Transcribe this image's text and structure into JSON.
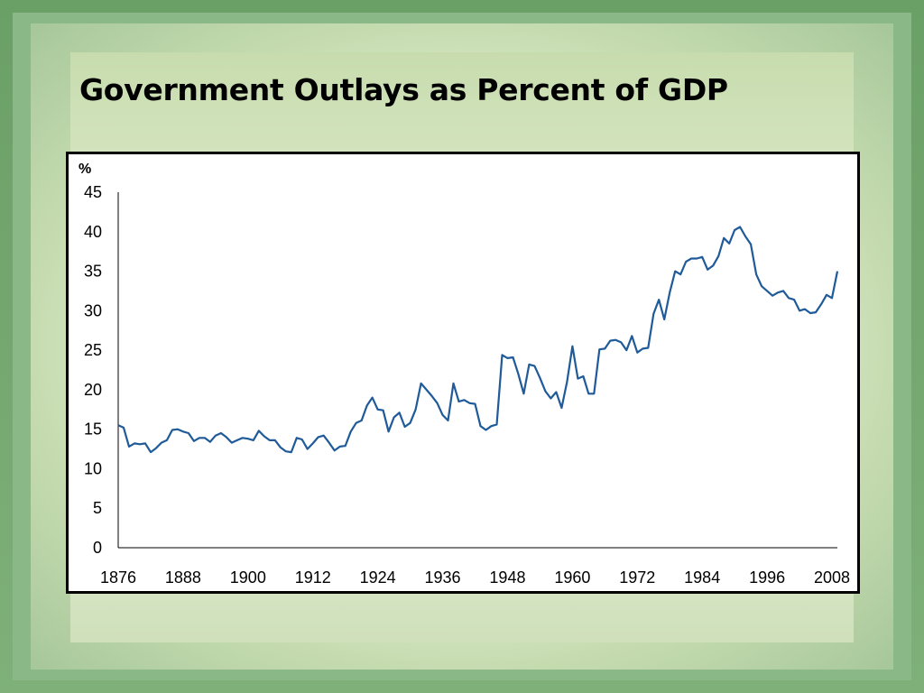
{
  "slide": {
    "title": "Government Outlays as Percent of GDP"
  },
  "colors": {
    "line": "#1f5a99",
    "frame": "#6ea36a",
    "slide_bg": "#dce9c9"
  },
  "chart_data": {
    "type": "line",
    "ylabel": "%",
    "xlabel": "",
    "ylim": [
      0,
      45
    ],
    "xlim": [
      1876,
      2009
    ],
    "y_ticks": [
      "0",
      "5",
      "10",
      "15",
      "20",
      "25",
      "30",
      "35",
      "40",
      "45"
    ],
    "x_ticks": [
      "1876",
      "1888",
      "1900",
      "1912",
      "1924",
      "1936",
      "1948",
      "1960",
      "1972",
      "1984",
      "1996",
      "2008"
    ],
    "grid": false,
    "series": [
      {
        "x": [
          1876,
          1877,
          1878,
          1879,
          1880,
          1881,
          1882,
          1883,
          1884,
          1885,
          1886,
          1887,
          1888,
          1889,
          1890,
          1891,
          1892,
          1893,
          1894,
          1895,
          1896,
          1897,
          1898,
          1899,
          1900,
          1901,
          1902,
          1903,
          1904,
          1905,
          1906,
          1907,
          1908,
          1909,
          1910,
          1911,
          1912,
          1913,
          1914,
          1915,
          1916,
          1917,
          1918,
          1919,
          1920,
          1921,
          1922,
          1923,
          1924,
          1925,
          1926,
          1927,
          1928,
          1929,
          1930,
          1931,
          1932,
          1933,
          1934,
          1935,
          1936,
          1937,
          1938,
          1939,
          1940,
          1941,
          1942,
          1943,
          1944,
          1945,
          1946,
          1947,
          1948,
          1949,
          1950,
          1951,
          1952,
          1953,
          1954,
          1955,
          1956,
          1957,
          1958,
          1959,
          1960,
          1961,
          1962,
          1963,
          1964,
          1965,
          1966,
          1967,
          1968,
          1969,
          1970,
          1971,
          1972,
          1973,
          1974,
          1975,
          1976,
          1977,
          1978,
          1979,
          1980,
          1981,
          1982,
          1983,
          1984,
          1985,
          1986,
          1987,
          1988,
          1989,
          1990,
          1991,
          1992,
          1993,
          1994,
          1995,
          1996,
          1997,
          1998,
          1999,
          2000,
          2001,
          2002,
          2003,
          2004,
          2005,
          2006,
          2007,
          2008,
          2009
        ],
        "values": [
          15.5,
          15.2,
          12.8,
          13.2,
          13.1,
          13.2,
          12.1,
          12.6,
          13.3,
          13.6,
          14.9,
          15.0,
          14.7,
          14.5,
          13.5,
          13.9,
          13.9,
          13.4,
          14.2,
          14.5,
          14.0,
          13.3,
          13.6,
          13.9,
          13.8,
          13.6,
          14.8,
          14.1,
          13.6,
          13.6,
          12.7,
          12.2,
          12.1,
          13.9,
          13.7,
          12.5,
          13.2,
          14.0,
          14.2,
          13.3,
          12.3,
          12.8,
          12.9,
          14.7,
          15.8,
          16.1,
          18.0,
          19.0,
          17.5,
          17.4,
          14.7,
          16.5,
          17.1,
          15.3,
          15.8,
          17.5,
          20.8,
          20.0,
          19.2,
          18.3,
          16.8,
          16.1,
          20.8,
          18.5,
          18.7,
          18.3,
          18.2,
          15.4,
          14.9,
          15.4,
          15.6,
          24.4,
          24.0,
          24.1,
          22.0,
          19.5,
          23.2,
          23.0,
          21.5,
          19.8,
          18.9,
          19.7,
          17.7,
          21.0,
          25.5,
          21.4,
          21.7,
          19.5,
          19.5,
          25.1,
          25.2,
          26.2,
          26.3,
          26.0,
          25.0,
          26.8,
          24.7,
          25.2,
          25.3,
          29.6,
          31.4,
          28.9,
          32.3,
          35.0,
          34.6,
          36.2,
          36.6,
          36.6,
          36.8,
          35.2,
          35.7,
          36.9,
          39.2,
          38.5,
          40.2,
          40.6,
          39.4,
          38.4,
          34.6,
          33.1,
          32.5,
          31.9,
          32.3,
          32.5,
          31.6,
          31.4,
          30.0,
          30.2,
          29.7,
          29.8,
          30.8,
          32.0,
          31.6,
          35.0
        ]
      }
    ]
  }
}
